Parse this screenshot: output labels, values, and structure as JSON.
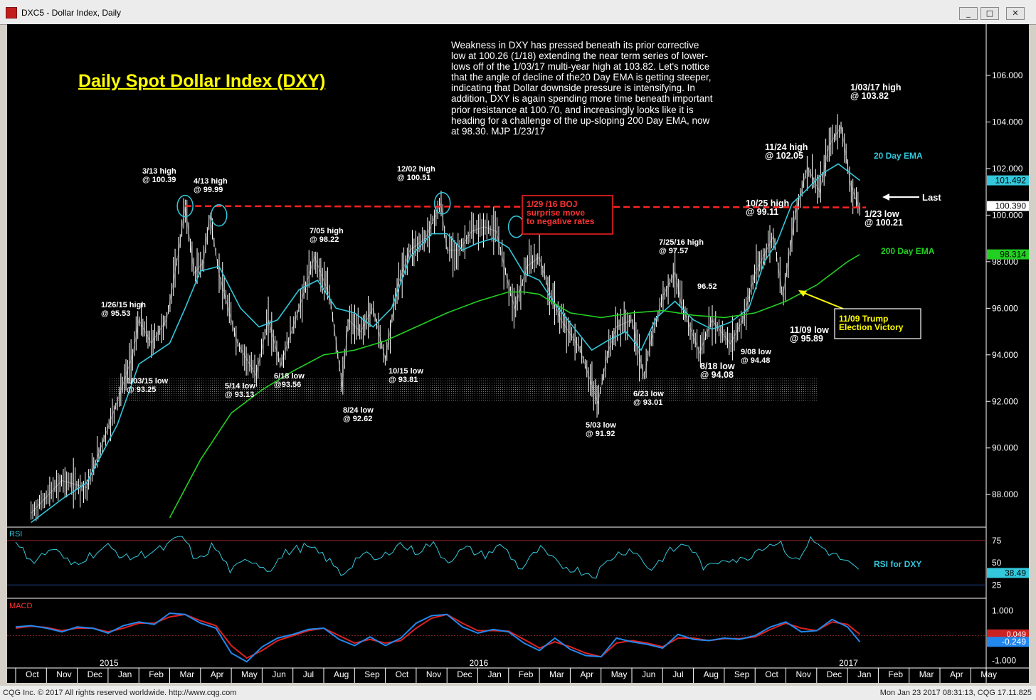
{
  "window": {
    "title": "DXC5 - Dollar Index, Daily",
    "minimize": "_",
    "maximize": "□",
    "close": "✕"
  },
  "status": {
    "left": "CQG Inc. © 2017 All rights reserved worldwide. http://www.cqg.com",
    "right": "Mon Jan 23 2017  08:31:13, CQG 17.11.825"
  },
  "colors": {
    "price_bars": "#ffffff",
    "ema20": "#33c8dc",
    "ema200": "#22d022",
    "rsi": "#33c8dc",
    "macd": "#2288ee",
    "macd_signal": "#dd2222",
    "resistance": "#ff2222",
    "title": "#ffff00"
  },
  "main_title": "Daily Spot Dollar Index (DXY)",
  "commentary": [
    "Weakness in DXY has pressed beneath its prior corrective",
    "low at 100.26 (1/18) extending the near term series of lower-",
    "lows off of the 1/03/17 multi-year high at 103.82. Let's nottice",
    "that the angle of decline of the20 Day EMA is getting steeper,",
    "indicating that Dollar downside pressure is intensifying. In",
    "addition, DXY is again spending more time beneath important",
    "prior resistance at 100.70, and increasingly looks like it is",
    "heading for a challenge of the up-sloping 200 Day EMA, now",
    "at 98.30.  MJP 1/23/17"
  ],
  "chart_data": [
    {
      "type": "line",
      "panel": "price",
      "y_axis_ticks": [
        "106.000",
        "104.000",
        "102.000",
        "100.000",
        "98.000",
        "96.000",
        "94.000",
        "92.000",
        "90.000",
        "88.000"
      ],
      "y_tick_values": [
        106,
        104,
        102,
        100,
        98,
        96,
        94,
        92,
        90,
        88
      ],
      "ylim": [
        86.6,
        108.2
      ],
      "x_month_labels": [
        "Oct",
        "Nov",
        "Dec",
        "Jan",
        "Feb",
        "Mar",
        "Apr",
        "May",
        "Jun",
        "Jul",
        "Aug",
        "Sep",
        "Oct",
        "Nov",
        "Dec",
        "Jan",
        "Feb",
        "Mar",
        "Apr",
        "May",
        "Jun",
        "Jul",
        "Aug",
        "Sep",
        "Oct",
        "Nov",
        "Dec",
        "Jan",
        "Feb",
        "Mar",
        "Apr",
        "May"
      ],
      "x_year_labels": [
        "2015",
        "2016",
        "2017"
      ],
      "x_year_month_index": [
        3,
        15,
        27
      ],
      "series": [
        {
          "name": "DXY",
          "x_month": [
            0.5,
            1.5,
            2.3,
            3.3,
            3.8,
            4.0,
            4.4,
            4.9,
            5.3,
            5.5,
            5.8,
            6.1,
            6.3,
            6.6,
            7.2,
            7.8,
            8.2,
            8.6,
            9.2,
            9.7,
            10.2,
            10.6,
            10.8,
            11.2,
            11.6,
            12.0,
            12.4,
            12.8,
            13.3,
            13.8,
            14.0,
            14.4,
            14.8,
            15.2,
            15.6,
            16.0,
            16.2,
            16.6,
            17.0,
            17.3,
            17.7,
            18.3,
            18.9,
            19.2,
            19.5,
            20.0,
            20.4,
            20.6,
            21.0,
            21.4,
            21.6,
            22.2,
            22.6,
            23.2,
            23.6,
            24.0,
            24.6,
            24.9,
            25.3,
            25.7,
            26.1,
            26.4,
            26.8,
            27.1,
            27.4
          ],
          "y": [
            87.2,
            88.6,
            88.3,
            92.0,
            94.0,
            95.5,
            94.5,
            95.5,
            98.5,
            100.39,
            97.5,
            98.0,
            99.99,
            97.5,
            94.5,
            93.13,
            95.5,
            93.56,
            96.0,
            98.22,
            96.5,
            92.62,
            95.5,
            95.0,
            96.0,
            93.81,
            97.0,
            98.5,
            99.0,
            100.51,
            98.5,
            98.5,
            99.3,
            99.5,
            99.3,
            97.0,
            96.0,
            97.8,
            98.2,
            96.8,
            95.5,
            94.3,
            91.92,
            94.0,
            95.2,
            95.5,
            93.01,
            94.5,
            96.5,
            97.57,
            96.2,
            94.08,
            95.5,
            94.48,
            95.5,
            97.5,
            99.11,
            96.5,
            100.0,
            102.05,
            101.0,
            103.0,
            103.82,
            101.3,
            100.21
          ]
        },
        {
          "name": "20 Day EMA",
          "x_month": [
            0.5,
            1.5,
            2.3,
            3.3,
            4.0,
            5.0,
            5.5,
            6.0,
            6.6,
            7.3,
            7.9,
            8.5,
            9.2,
            9.8,
            10.4,
            11.0,
            11.6,
            12.2,
            12.8,
            13.5,
            14.0,
            14.5,
            15.0,
            15.5,
            16.0,
            16.5,
            17.0,
            17.5,
            18.1,
            18.7,
            19.2,
            19.8,
            20.3,
            20.8,
            21.4,
            22.0,
            22.6,
            23.2,
            23.8,
            24.3,
            24.7,
            25.2,
            25.6,
            26.2,
            26.7,
            27.0,
            27.4
          ],
          "y": [
            86.8,
            87.8,
            88.5,
            91.0,
            93.6,
            94.5,
            96.0,
            97.6,
            97.8,
            96.0,
            95.2,
            95.5,
            96.8,
            97.2,
            96.0,
            95.8,
            95.2,
            96.0,
            98.2,
            99.2,
            99.2,
            98.5,
            98.8,
            99.0,
            98.6,
            97.5,
            97.2,
            96.2,
            95.2,
            94.2,
            94.6,
            95.0,
            94.2,
            95.6,
            96.3,
            95.5,
            95.1,
            95.4,
            96.0,
            98.0,
            98.8,
            100.5,
            101.0,
            101.8,
            102.2,
            101.9,
            101.49
          ]
        },
        {
          "name": "200 Day EMA",
          "x_month": [
            5.0,
            6.0,
            7.0,
            8.0,
            9.0,
            10.0,
            11.0,
            12.0,
            13.0,
            14.0,
            15.0,
            16.0,
            16.5,
            17.0,
            17.5,
            18.0,
            19.0,
            20.0,
            21.0,
            22.0,
            23.0,
            24.0,
            25.0,
            26.0,
            27.0,
            27.4
          ],
          "y": [
            87.0,
            89.5,
            91.5,
            92.5,
            93.3,
            94.0,
            94.2,
            94.6,
            95.2,
            95.8,
            96.3,
            96.7,
            96.7,
            96.6,
            96.2,
            95.8,
            95.6,
            95.8,
            95.9,
            95.7,
            95.6,
            95.8,
            96.3,
            97.0,
            98.0,
            98.31
          ]
        }
      ],
      "resistance": {
        "value": 100.39,
        "from_month": 5.5,
        "to_month": 27.6
      },
      "support_zone": {
        "y_range": [
          91.98,
          92.98
        ],
        "from_month": 3.0,
        "to_month": 26.0
      },
      "last_price_box": "100.390",
      "ema20_box": "101.492",
      "ema200_box": "98.314",
      "annotations": [
        "1/26/15 high\n@ 95.53",
        "3/13 high\n@ 100.39",
        "4/13 high\n@ 99.99",
        "5/14 low\n@ 93.13",
        "6/18 low\n@93.56",
        "7/05 high\n@ 98.22",
        "8/24 low\n@ 92.62",
        "10/15 low\n@ 93.81",
        "12/02 high\n@ 100.51",
        "5/03 low\n@ 91.92",
        "6/23 low\n@ 93.01",
        "7/25/16 high\n@ 97.57",
        "96.52",
        "8/18 low\n@ 94.08",
        "9/08 low\n@ 94.48",
        "10/25 high\n@ 99.11",
        "11/09 low\n@ 95.89",
        "11/24 high\n@ 102.05",
        "1/03/17 high\n@ 103.82",
        "1/23 low\n@ 100.21",
        "1/03/15 low\n@ 93.25"
      ],
      "boj_box": "1/29 /16 BOJ\nsurprise move\nto negative rates",
      "trump_box": "11/09 Trump\nElection Victory",
      "series_labels": {
        "ema20": "20 Day EMA",
        "ema200": "200 Day EMA",
        "last": "Last"
      }
    },
    {
      "type": "line",
      "panel": "rsi",
      "title": "RSI",
      "y_axis_ticks": [
        "75",
        "50",
        "25"
      ],
      "y_tick_values": [
        75,
        50,
        25
      ],
      "ylim": [
        10,
        90
      ],
      "value_box": "38.49",
      "series_label": "RSI for DXY",
      "series": [
        {
          "name": "RSI",
          "x_month": [
            0.0,
            0.6,
            1.2,
            1.8,
            2.4,
            3.0,
            3.6,
            4.2,
            4.8,
            5.4,
            5.9,
            6.4,
            7.0,
            7.6,
            8.2,
            8.8,
            9.4,
            10.0,
            10.6,
            11.2,
            11.8,
            12.4,
            13.0,
            13.5,
            14.0,
            14.6,
            15.2,
            15.8,
            16.4,
            17.0,
            17.6,
            18.2,
            18.8,
            19.4,
            20.0,
            20.6,
            21.2,
            21.8,
            22.4,
            23.0,
            23.6,
            24.2,
            24.8,
            25.3,
            25.8,
            26.4,
            27.0,
            27.4
          ],
          "y": [
            70,
            52,
            66,
            48,
            58,
            68,
            55,
            60,
            66,
            80,
            50,
            70,
            40,
            55,
            42,
            62,
            68,
            58,
            36,
            60,
            52,
            72,
            62,
            72,
            52,
            66,
            58,
            70,
            42,
            66,
            48,
            42,
            36,
            58,
            66,
            42,
            62,
            72,
            42,
            56,
            52,
            68,
            74,
            50,
            76,
            62,
            50,
            38.49
          ]
        }
      ]
    },
    {
      "type": "line",
      "panel": "macd",
      "title": "MACD",
      "y_axis_ticks": [
        "1.000",
        "-1.000"
      ],
      "y_tick_values": [
        1.0,
        -1.0
      ],
      "ylim": [
        -1.3,
        1.5
      ],
      "value_box": "-0.249",
      "value_box_2": "0.049",
      "series": [
        {
          "name": "MACD",
          "x_month": [
            0.0,
            0.5,
            1.0,
            1.5,
            2.0,
            2.5,
            3.0,
            3.5,
            4.0,
            4.5,
            5.0,
            5.5,
            6.0,
            6.5,
            7.0,
            7.5,
            8.0,
            8.5,
            9.0,
            9.5,
            10.0,
            10.5,
            11.0,
            11.5,
            12.0,
            12.5,
            13.0,
            13.5,
            14.0,
            14.5,
            15.0,
            15.5,
            16.0,
            16.5,
            17.0,
            17.5,
            18.0,
            18.5,
            19.0,
            19.5,
            20.0,
            20.5,
            21.0,
            21.5,
            22.0,
            22.5,
            23.0,
            23.5,
            24.0,
            24.5,
            25.0,
            25.5,
            26.0,
            26.5,
            27.0,
            27.4
          ],
          "y": [
            0.35,
            0.4,
            0.3,
            0.15,
            0.35,
            0.3,
            0.1,
            0.4,
            0.55,
            0.45,
            0.9,
            0.85,
            0.5,
            0.3,
            -0.7,
            -1.05,
            -0.45,
            -0.1,
            0.05,
            0.25,
            0.3,
            -0.15,
            -0.4,
            -0.05,
            -0.4,
            -0.1,
            0.5,
            0.8,
            0.85,
            0.35,
            0.1,
            0.25,
            0.15,
            -0.3,
            -0.6,
            -0.1,
            -0.55,
            -0.8,
            -0.85,
            -0.1,
            -0.25,
            -0.35,
            -0.5,
            0.05,
            -0.15,
            -0.2,
            -0.1,
            -0.15,
            0.0,
            0.35,
            0.55,
            0.15,
            0.2,
            0.65,
            0.35,
            -0.249
          ]
        },
        {
          "name": "Signal",
          "x_month": [
            0.0,
            0.5,
            1.0,
            1.5,
            2.0,
            2.5,
            3.0,
            3.5,
            4.0,
            4.5,
            5.0,
            5.5,
            6.0,
            6.5,
            7.0,
            7.5,
            8.0,
            8.5,
            9.0,
            9.5,
            10.0,
            10.5,
            11.0,
            11.5,
            12.0,
            12.5,
            13.0,
            13.5,
            14.0,
            14.5,
            15.0,
            15.5,
            16.0,
            16.5,
            17.0,
            17.5,
            18.0,
            18.5,
            19.0,
            19.5,
            20.0,
            20.5,
            21.0,
            21.5,
            22.0,
            22.5,
            23.0,
            23.5,
            24.0,
            24.5,
            25.0,
            25.5,
            26.0,
            26.5,
            27.0,
            27.4
          ],
          "y": [
            0.3,
            0.38,
            0.33,
            0.2,
            0.3,
            0.3,
            0.15,
            0.3,
            0.5,
            0.5,
            0.75,
            0.85,
            0.6,
            0.4,
            -0.4,
            -0.9,
            -0.6,
            -0.2,
            0.0,
            0.2,
            0.3,
            0.0,
            -0.3,
            -0.15,
            -0.3,
            -0.2,
            0.3,
            0.7,
            0.85,
            0.5,
            0.2,
            0.2,
            0.18,
            -0.15,
            -0.5,
            -0.25,
            -0.45,
            -0.7,
            -0.85,
            -0.3,
            -0.2,
            -0.3,
            -0.45,
            -0.1,
            -0.1,
            -0.2,
            -0.12,
            -0.12,
            -0.05,
            0.25,
            0.5,
            0.3,
            0.2,
            0.55,
            0.45,
            0.049
          ]
        }
      ]
    }
  ]
}
